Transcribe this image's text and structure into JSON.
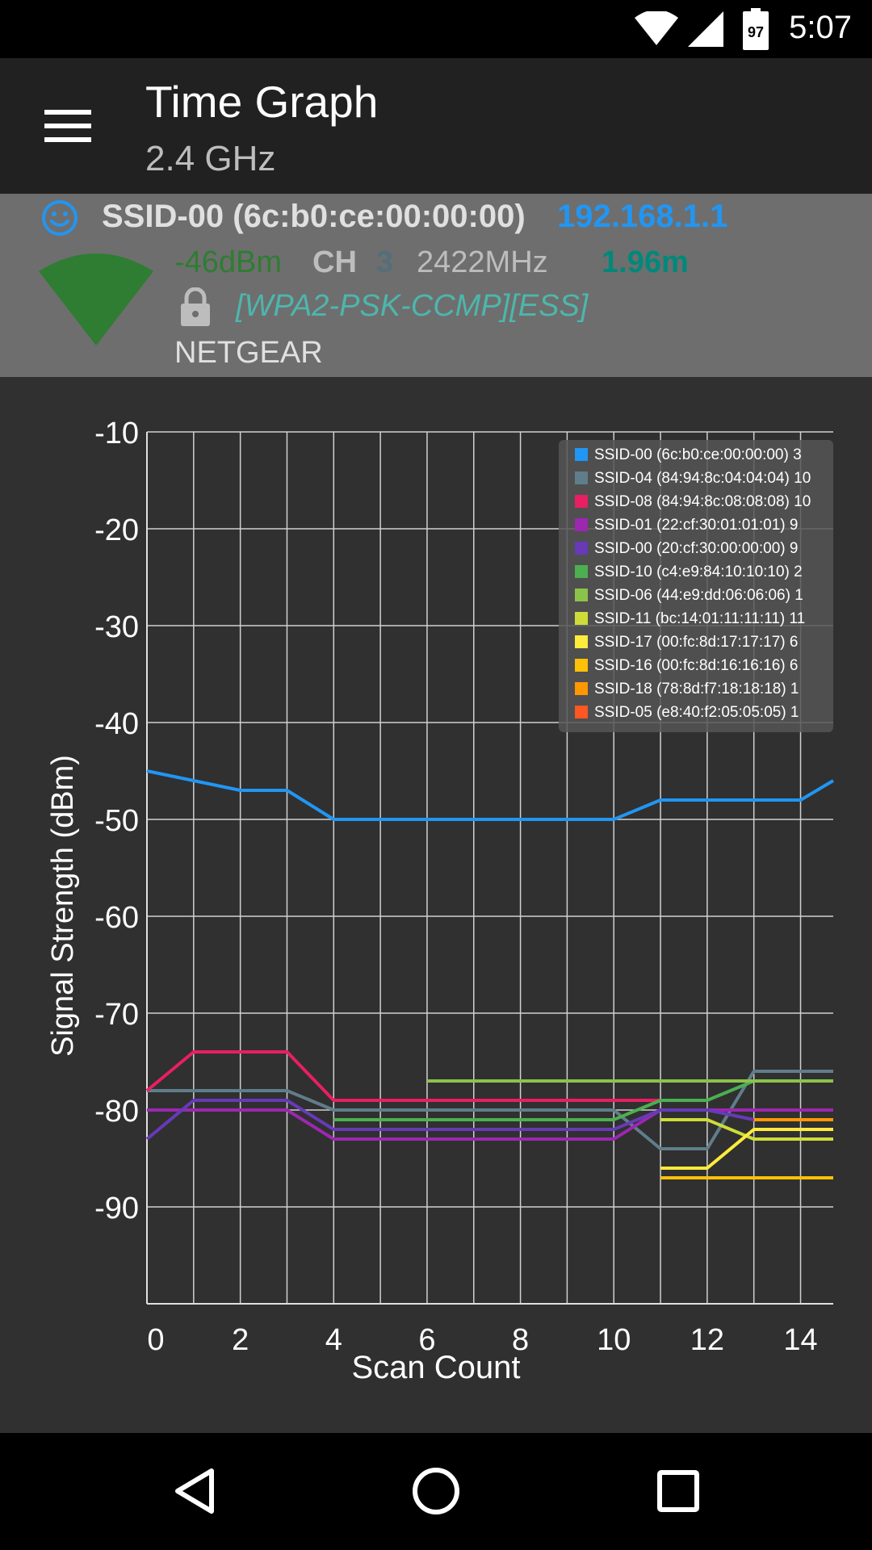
{
  "status_bar": {
    "time": "5:07",
    "battery_level": "97",
    "icons": [
      "wifi-icon",
      "cell-signal-icon",
      "battery-icon"
    ]
  },
  "app_bar": {
    "menu_icon": "menu-icon",
    "title": "Time Graph",
    "subtitle": "2.4 GHz"
  },
  "connection": {
    "ssid": "SSID-00 (6c:b0:ce:00:00:00)",
    "ip": "192.168.1.1",
    "level": "-46dBm",
    "channel_label": "CH",
    "channel": "3",
    "frequency": "2422MHz",
    "distance": "1.96m",
    "capabilities": "[WPA2-PSK-CCMP][ESS]",
    "vendor": "NETGEAR",
    "colors": {
      "ssid": "#e0e0e0",
      "ip": "#2196f3",
      "level": "#2e7d32",
      "channel_label": "#bdbdbd",
      "channel": "#546e7a",
      "frequency": "#bdbdbd",
      "distance": "#00897b",
      "capabilities": "#4db6ac",
      "vendor": "#e0e0e0",
      "signal_fan": "#2e7d32",
      "smiley": "#2196f3"
    }
  },
  "chart_data": {
    "type": "line",
    "xlabel": "Scan Count",
    "ylabel": "Signal Strength (dBm)",
    "xlim": [
      0,
      14.7
    ],
    "ylim": [
      -100,
      -10
    ],
    "x_ticks": [
      0,
      2,
      4,
      6,
      8,
      10,
      12,
      14
    ],
    "y_ticks": [
      -10,
      -20,
      -30,
      -40,
      -50,
      -60,
      -70,
      -80,
      -90
    ],
    "grid": true,
    "legend_position": "top-right",
    "series": [
      {
        "name": "SSID-00 (6c:b0:ce:00:00:00) 3",
        "color": "#2196f3",
        "x": [
          0,
          1,
          2,
          3,
          4,
          5,
          6,
          7,
          8,
          9,
          10,
          11,
          12,
          13,
          14,
          14.7
        ],
        "y": [
          -45,
          -46,
          -47,
          -47,
          -50,
          -50,
          -50,
          -50,
          -50,
          -50,
          -50,
          -48,
          -48,
          -48,
          -48,
          -46
        ]
      },
      {
        "name": "SSID-04 (84:94:8c:04:04:04) 10",
        "color": "#607d8b",
        "x": [
          0,
          1,
          2,
          3,
          4,
          5,
          6,
          7,
          8,
          9,
          10,
          11,
          12,
          13,
          14,
          14.7
        ],
        "y": [
          -78,
          -78,
          -78,
          -78,
          -80,
          -80,
          -80,
          -80,
          -80,
          -80,
          -80,
          -84,
          -84,
          -76,
          -76,
          -76
        ]
      },
      {
        "name": "SSID-08 (84:94:8c:08:08:08) 10",
        "color": "#e91e63",
        "x": [
          0,
          1,
          2,
          3,
          4,
          5,
          6,
          7,
          8,
          9,
          10,
          11
        ],
        "y": [
          -78,
          -74,
          -74,
          -74,
          -79,
          -79,
          -79,
          -79,
          -79,
          -79,
          -79,
          -79
        ]
      },
      {
        "name": "SSID-01 (22:cf:30:01:01:01) 9",
        "color": "#9c27b0",
        "x": [
          0,
          1,
          2,
          3,
          4,
          5,
          6,
          7,
          8,
          9,
          10,
          11,
          12,
          13,
          14,
          14.7
        ],
        "y": [
          -80,
          -80,
          -80,
          -80,
          -83,
          -83,
          -83,
          -83,
          -83,
          -83,
          -83,
          -80,
          -80,
          -80,
          -80,
          -80
        ]
      },
      {
        "name": "SSID-00 (20:cf:30:00:00:00) 9",
        "color": "#673ab7",
        "x": [
          0,
          1,
          2,
          3,
          4,
          5,
          6,
          7,
          8,
          9,
          10,
          11,
          12,
          13,
          14,
          14.7
        ],
        "y": [
          -83,
          -79,
          -79,
          -79,
          -82,
          -82,
          -82,
          -82,
          -82,
          -82,
          -82,
          -80,
          -80,
          -81,
          -81,
          -81
        ]
      },
      {
        "name": "SSID-10 (c4:e9:84:10:10:10) 2",
        "color": "#4caf50",
        "x": [
          4,
          5,
          6,
          7,
          8,
          9,
          10,
          11,
          12,
          13,
          14,
          14.7
        ],
        "y": [
          -81,
          -81,
          -81,
          -81,
          -81,
          -81,
          -81,
          -79,
          -79,
          -77,
          -77,
          -77
        ]
      },
      {
        "name": "SSID-06 (44:e9:dd:06:06:06) 1",
        "color": "#8bc34a",
        "x": [
          6,
          7,
          8,
          9,
          10,
          11,
          12,
          13,
          14,
          14.7
        ],
        "y": [
          -77,
          -77,
          -77,
          -77,
          -77,
          -77,
          -77,
          -77,
          -77,
          -77
        ]
      },
      {
        "name": "SSID-11 (bc:14:01:11:11:11) 11",
        "color": "#cddc39",
        "x": [
          11,
          12,
          13,
          14,
          14.7
        ],
        "y": [
          -81,
          -81,
          -83,
          -83,
          -83
        ]
      },
      {
        "name": "SSID-17 (00:fc:8d:17:17:17) 6",
        "color": "#ffeb3b",
        "x": [
          11,
          12,
          13,
          14,
          14.7
        ],
        "y": [
          -86,
          -86,
          -82,
          -82,
          -82
        ]
      },
      {
        "name": "SSID-16 (00:fc:8d:16:16:16) 6",
        "color": "#ffc107",
        "x": [
          11,
          12,
          13,
          14,
          14.7
        ],
        "y": [
          -87,
          -87,
          -87,
          -87,
          -87
        ]
      },
      {
        "name": "SSID-18 (78:8d:f7:18:18:18) 1",
        "color": "#ff9800",
        "x": [
          13,
          14,
          14.7
        ],
        "y": [
          -81,
          -81,
          -81
        ]
      },
      {
        "name": "SSID-05 (e8:40:f2:05:05:05) 1",
        "color": "#ff5722",
        "x": [],
        "y": []
      }
    ]
  },
  "nav_bar": {
    "icons": [
      "back-icon",
      "home-icon",
      "recents-icon"
    ]
  }
}
